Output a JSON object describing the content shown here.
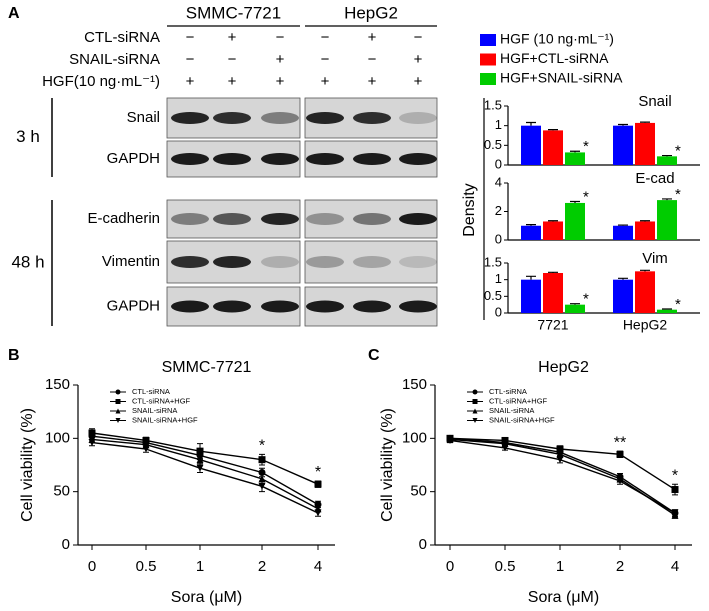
{
  "panel_labels": {
    "a": "A",
    "b": "B",
    "c": "C"
  },
  "blot": {
    "cell_lines": [
      "SMMC-7721",
      "HepG2"
    ],
    "conditions": [
      {
        "label": "CTL-siRNA",
        "signs": [
          "−",
          "+",
          "−",
          "−",
          "+",
          "−"
        ]
      },
      {
        "label": "SNAIL-siRNA",
        "signs": [
          "−",
          "−",
          "+",
          "−",
          "−",
          "+"
        ]
      },
      {
        "label": "HGF(10 ng·mL⁻¹)",
        "signs": [
          "+",
          "+",
          "+",
          "+",
          "+",
          "+"
        ]
      }
    ],
    "groups": [
      {
        "label": "3 h",
        "rows": [
          "Snail",
          "GAPDH"
        ]
      },
      {
        "label": "48 h",
        "rows": [
          "E-cadherin",
          "Vimentin",
          "GAPDH"
        ]
      }
    ]
  },
  "chart_data": [
    {
      "type": "bar",
      "ylabel": "Density",
      "categories": [
        "7721",
        "HepG2"
      ],
      "series": [
        {
          "name": "HGF (10 ng·mL⁻¹)",
          "color": "#0000ff"
        },
        {
          "name": "HGF+CTL-siRNA",
          "color": "#ff0000"
        },
        {
          "name": "HGF+SNAIL-siRNA",
          "color": "#00cc00"
        }
      ],
      "panels": [
        {
          "title": "Snail",
          "ylim": [
            0,
            1.5
          ],
          "yticks": [
            0,
            0.5,
            1,
            1.5
          ],
          "series": [
            {
              "values": [
                1.0,
                1.0
              ],
              "errors": [
                0.08,
                0.03
              ]
            },
            {
              "values": [
                0.88,
                1.07
              ],
              "errors": [
                0.02,
                0.02
              ]
            },
            {
              "values": [
                0.32,
                0.22
              ],
              "errors": [
                0.03,
                0.02
              ],
              "annotations": [
                "*",
                "*"
              ]
            }
          ]
        },
        {
          "title": "E-cad",
          "ylim": [
            0,
            4
          ],
          "yticks": [
            0,
            2,
            4
          ],
          "series": [
            {
              "values": [
                1.0,
                1.0
              ],
              "errors": [
                0.08,
                0.05
              ]
            },
            {
              "values": [
                1.3,
                1.3
              ],
              "errors": [
                0.05,
                0.05
              ]
            },
            {
              "values": [
                2.6,
                2.8
              ],
              "errors": [
                0.1,
                0.08
              ],
              "annotations": [
                "*",
                "*"
              ]
            }
          ]
        },
        {
          "title": "Vim",
          "ylim": [
            0,
            1.5
          ],
          "yticks": [
            0,
            0.5,
            1,
            1.5
          ],
          "series": [
            {
              "values": [
                1.0,
                1.0
              ],
              "errors": [
                0.1,
                0.04
              ]
            },
            {
              "values": [
                1.2,
                1.25
              ],
              "errors": [
                0.02,
                0.03
              ]
            },
            {
              "values": [
                0.25,
                0.1
              ],
              "errors": [
                0.03,
                0.02
              ],
              "annotations": [
                "*",
                "*"
              ]
            }
          ]
        }
      ]
    },
    {
      "type": "line",
      "title": "SMMC-7721",
      "xlabel": "Sora (μM)",
      "ylabel": "Cell viability (%)",
      "categories": [
        "0",
        "0.5",
        "1",
        "2",
        "4"
      ],
      "ylim": [
        0,
        150
      ],
      "yticks": [
        0,
        50,
        100,
        150
      ],
      "annotations": [
        null,
        null,
        null,
        "*",
        "*"
      ],
      "series": [
        {
          "name": "CTL-siRNA",
          "marker": "circle",
          "color": "#000000",
          "values": [
            102,
            96,
            84,
            68,
            38
          ],
          "errors": [
            3,
            3,
            4,
            4,
            3
          ]
        },
        {
          "name": "CTL-siRNA+HGF",
          "marker": "square",
          "color": "#000000",
          "values": [
            105,
            98,
            88,
            80,
            57
          ],
          "errors": [
            4,
            3,
            7,
            5,
            3
          ]
        },
        {
          "name": "SNAIL-siRNA",
          "marker": "triangle",
          "color": "#000000",
          "values": [
            99,
            94,
            80,
            62,
            34
          ],
          "errors": [
            3,
            3,
            4,
            5,
            3
          ]
        },
        {
          "name": "SNAIL-siRNA+HGF",
          "marker": "triangle-down",
          "color": "#000000",
          "values": [
            96,
            90,
            72,
            55,
            30
          ],
          "errors": [
            3,
            3,
            4,
            5,
            3
          ]
        }
      ]
    },
    {
      "type": "line",
      "title": "HepG2",
      "xlabel": "Sora (μM)",
      "ylabel": "Cell viability (%)",
      "categories": [
        "0",
        "0.5",
        "1",
        "2",
        "4"
      ],
      "ylim": [
        0,
        150
      ],
      "yticks": [
        0,
        50,
        100,
        150
      ],
      "annotations": [
        null,
        null,
        null,
        "**",
        "*"
      ],
      "series": [
        {
          "name": "CTL-siRNA",
          "marker": "circle",
          "color": "#000000",
          "values": [
            100,
            96,
            87,
            64,
            30
          ],
          "errors": [
            2,
            2,
            3,
            3,
            3
          ]
        },
        {
          "name": "CTL-siRNA+HGF",
          "marker": "square",
          "color": "#000000",
          "values": [
            100,
            98,
            90,
            85,
            52
          ],
          "errors": [
            2,
            2,
            3,
            3,
            5
          ]
        },
        {
          "name": "SNAIL-siRNA",
          "marker": "triangle",
          "color": "#000000",
          "values": [
            99,
            95,
            85,
            62,
            28
          ],
          "errors": [
            2,
            2,
            3,
            3,
            3
          ]
        },
        {
          "name": "SNAIL-siRNA+HGF",
          "marker": "triangle-down",
          "color": "#000000",
          "values": [
            98,
            91,
            80,
            60,
            30
          ],
          "errors": [
            2,
            2,
            3,
            3,
            3
          ]
        }
      ]
    }
  ]
}
